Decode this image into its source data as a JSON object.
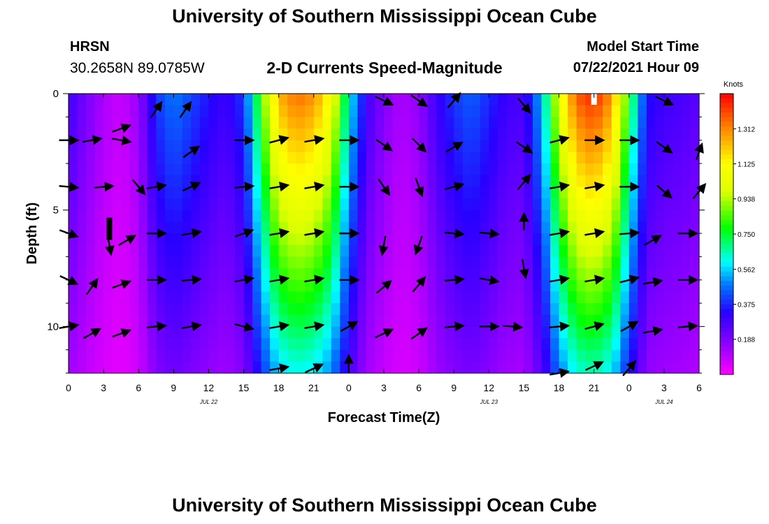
{
  "page": {
    "title_top": "University of Southern Mississippi Ocean Cube",
    "title_bottom": "University of Southern Mississippi Ocean Cube",
    "station_name": "HRSN",
    "station_coords": "30.2658N  89.0785W",
    "product_title": "2-D Currents Speed-Magnitude",
    "model_start_label": "Model Start Time",
    "model_start_value": "07/22/2021 Hour 09"
  },
  "chart_data": {
    "type": "heatmap",
    "title": "2-D Currents Speed-Magnitude",
    "xlabel": "Forecast Time(Z)",
    "ylabel": "Depth (ft)",
    "x_hours_range": [
      0,
      54
    ],
    "y_range": [
      0,
      12
    ],
    "x_tick_labels": [
      "0",
      "3",
      "6",
      "9",
      "12",
      "15",
      "18",
      "21",
      "0",
      "3",
      "6",
      "9",
      "12",
      "15",
      "18",
      "21",
      "0",
      "3",
      "6"
    ],
    "y_tick_values": [
      0,
      5,
      10
    ],
    "date_labels": [
      {
        "hour": 12,
        "label": "JUL 22"
      },
      {
        "hour": 36,
        "label": "JUL 23"
      },
      {
        "hour": 51,
        "label": "JUL 24"
      }
    ],
    "colorbar": {
      "unit": "Knots",
      "range": [
        0,
        1.5
      ],
      "tick_values": [
        1.312,
        1.125,
        0.938,
        0.75,
        0.562,
        0.375,
        0.188
      ],
      "tick_labels": [
        "1.312",
        "1.125",
        "0.938",
        "0.750",
        "0.562",
        "0.375",
        "0.188"
      ]
    },
    "speed_profile": {
      "hours": [
        0,
        1.5,
        3,
        4.5,
        6,
        7.5,
        9,
        10.5,
        12,
        13.5,
        15,
        16.5,
        18,
        19.5,
        21,
        22.5,
        24,
        25.5,
        27,
        28.5,
        30,
        31.5,
        33,
        34.5,
        36,
        37.5,
        39,
        40.5,
        42,
        43.5,
        45,
        46.5,
        48,
        49.5,
        51,
        52.5,
        54
      ],
      "surface_knots": [
        0.3,
        0.2,
        0.12,
        0.08,
        0.15,
        0.4,
        0.48,
        0.42,
        0.35,
        0.3,
        0.4,
        0.85,
        1.25,
        1.35,
        1.3,
        1.1,
        0.62,
        0.3,
        0.18,
        0.12,
        0.16,
        0.3,
        0.4,
        0.45,
        0.38,
        0.3,
        0.28,
        0.55,
        1.05,
        1.38,
        1.45,
        1.3,
        0.8,
        0.35,
        0.3,
        0.28,
        0.25
      ],
      "depth_factor_at_bottom": 0.45
    },
    "vector_rows_depth_ft": [
      0,
      2,
      4,
      6,
      8,
      10,
      12
    ],
    "vectors_note": "direction in degrees (0 = up/north, clockwise), length relative",
    "vectors": [
      {
        "hour": 0,
        "depth": 2,
        "dir": 90,
        "len": 0.9
      },
      {
        "hour": 2,
        "depth": 2,
        "dir": 80,
        "len": 0.9
      },
      {
        "hour": 4.5,
        "depth": 2,
        "dir": 100,
        "len": 0.9
      },
      {
        "hour": 7.5,
        "depth": 0.7,
        "dir": 35,
        "len": 0.9
      },
      {
        "hour": 10,
        "depth": 0.7,
        "dir": 35,
        "len": 0.9
      },
      {
        "hour": 10.5,
        "depth": 2.5,
        "dir": 55,
        "len": 0.9
      },
      {
        "hour": 4.5,
        "depth": 1.5,
        "dir": 70,
        "len": 0.9
      },
      {
        "hour": 0,
        "depth": 4,
        "dir": 95,
        "len": 0.9
      },
      {
        "hour": 3,
        "depth": 4,
        "dir": 85,
        "len": 0.9
      },
      {
        "hour": 6,
        "depth": 4,
        "dir": 140,
        "len": 0.9
      },
      {
        "hour": 7.5,
        "depth": 4,
        "dir": 80,
        "len": 0.9
      },
      {
        "hour": 10.5,
        "depth": 4,
        "dir": 65,
        "len": 0.9
      },
      {
        "hour": 0,
        "depth": 6,
        "dir": 110,
        "len": 0.9
      },
      {
        "hour": 3.5,
        "depth": 6.5,
        "dir": 170,
        "len": 0.9
      },
      {
        "hour": 5,
        "depth": 6.3,
        "dir": 60,
        "len": 0.9
      },
      {
        "hour": 7.5,
        "depth": 6,
        "dir": 90,
        "len": 0.9
      },
      {
        "hour": 10.5,
        "depth": 6,
        "dir": 80,
        "len": 0.9
      },
      {
        "hour": 0,
        "depth": 8,
        "dir": 115,
        "len": 0.9
      },
      {
        "hour": 2,
        "depth": 8.3,
        "dir": 35,
        "len": 0.9
      },
      {
        "hour": 4.5,
        "depth": 8.2,
        "dir": 70,
        "len": 0.9
      },
      {
        "hour": 7.5,
        "depth": 8,
        "dir": 90,
        "len": 0.9
      },
      {
        "hour": 10.5,
        "depth": 8,
        "dir": 85,
        "len": 0.9
      },
      {
        "hour": 0,
        "depth": 10,
        "dir": 80,
        "len": 0.9
      },
      {
        "hour": 2,
        "depth": 10.3,
        "dir": 60,
        "len": 0.9
      },
      {
        "hour": 4.5,
        "depth": 10.3,
        "dir": 70,
        "len": 0.9
      },
      {
        "hour": 7.5,
        "depth": 10,
        "dir": 85,
        "len": 0.9
      },
      {
        "hour": 10.5,
        "depth": 10,
        "dir": 80,
        "len": 0.9
      },
      {
        "hour": 15,
        "depth": 2,
        "dir": 90,
        "len": 0.9
      },
      {
        "hour": 18,
        "depth": 2,
        "dir": 75,
        "len": 0.9
      },
      {
        "hour": 21,
        "depth": 2,
        "dir": 80,
        "len": 0.9
      },
      {
        "hour": 15,
        "depth": 4,
        "dir": 85,
        "len": 0.9
      },
      {
        "hour": 18,
        "depth": 4,
        "dir": 80,
        "len": 0.9
      },
      {
        "hour": 21,
        "depth": 4,
        "dir": 80,
        "len": 0.9
      },
      {
        "hour": 15,
        "depth": 6,
        "dir": 70,
        "len": 0.9
      },
      {
        "hour": 18,
        "depth": 6,
        "dir": 80,
        "len": 0.9
      },
      {
        "hour": 21,
        "depth": 6,
        "dir": 80,
        "len": 0.9
      },
      {
        "hour": 15,
        "depth": 8,
        "dir": 80,
        "len": 0.9
      },
      {
        "hour": 18,
        "depth": 8,
        "dir": 80,
        "len": 0.9
      },
      {
        "hour": 21,
        "depth": 8,
        "dir": 80,
        "len": 0.9
      },
      {
        "hour": 15,
        "depth": 10,
        "dir": 105,
        "len": 0.9
      },
      {
        "hour": 18,
        "depth": 10,
        "dir": 80,
        "len": 0.9
      },
      {
        "hour": 21,
        "depth": 10,
        "dir": 80,
        "len": 0.9
      },
      {
        "hour": 18,
        "depth": 11.8,
        "dir": 80,
        "len": 0.9
      },
      {
        "hour": 21,
        "depth": 11.8,
        "dir": 65,
        "len": 0.9
      },
      {
        "hour": 24,
        "depth": 2,
        "dir": 90,
        "len": 0.9
      },
      {
        "hour": 24,
        "depth": 4,
        "dir": 90,
        "len": 0.9
      },
      {
        "hour": 24,
        "depth": 6,
        "dir": 90,
        "len": 0.9
      },
      {
        "hour": 24,
        "depth": 8,
        "dir": 90,
        "len": 0.9
      },
      {
        "hour": 24,
        "depth": 10,
        "dir": 60,
        "len": 0.9
      },
      {
        "hour": 24,
        "depth": 11.6,
        "dir": 0,
        "len": 0.8
      },
      {
        "hour": 27,
        "depth": 0.3,
        "dir": 115,
        "len": 0.9
      },
      {
        "hour": 30,
        "depth": 0.3,
        "dir": 125,
        "len": 0.9
      },
      {
        "hour": 33,
        "depth": 0.3,
        "dir": 40,
        "len": 0.9
      },
      {
        "hour": 27,
        "depth": 2.2,
        "dir": 125,
        "len": 0.9
      },
      {
        "hour": 30,
        "depth": 2.2,
        "dir": 135,
        "len": 0.9
      },
      {
        "hour": 33,
        "depth": 2.3,
        "dir": 60,
        "len": 0.9
      },
      {
        "hour": 27,
        "depth": 4,
        "dir": 145,
        "len": 0.9
      },
      {
        "hour": 30,
        "depth": 4,
        "dir": 160,
        "len": 0.9
      },
      {
        "hour": 33,
        "depth": 4,
        "dir": 75,
        "len": 0.9
      },
      {
        "hour": 27,
        "depth": 6.5,
        "dir": 190,
        "len": 0.9
      },
      {
        "hour": 30,
        "depth": 6.5,
        "dir": 200,
        "len": 0.9
      },
      {
        "hour": 33,
        "depth": 6,
        "dir": 95,
        "len": 0.9
      },
      {
        "hour": 27,
        "depth": 8.3,
        "dir": 50,
        "len": 0.9
      },
      {
        "hour": 30,
        "depth": 8.2,
        "dir": 40,
        "len": 0.9
      },
      {
        "hour": 33,
        "depth": 8,
        "dir": 85,
        "len": 0.9
      },
      {
        "hour": 27,
        "depth": 10.3,
        "dir": 65,
        "len": 0.9
      },
      {
        "hour": 30,
        "depth": 10.3,
        "dir": 55,
        "len": 0.9
      },
      {
        "hour": 33,
        "depth": 10,
        "dir": 85,
        "len": 0.9
      },
      {
        "hour": 36,
        "depth": 2,
        "dir": 0,
        "len": 0
      },
      {
        "hour": 36,
        "depth": 4,
        "dir": 0,
        "len": 0
      },
      {
        "hour": 36,
        "depth": 6,
        "dir": 95,
        "len": 0.9
      },
      {
        "hour": 36,
        "depth": 8,
        "dir": 100,
        "len": 0.9
      },
      {
        "hour": 36,
        "depth": 10,
        "dir": 90,
        "len": 0.9
      },
      {
        "hour": 39,
        "depth": 0.5,
        "dir": 140,
        "len": 0.9
      },
      {
        "hour": 39,
        "depth": 2.3,
        "dir": 125,
        "len": 0.9
      },
      {
        "hour": 39,
        "depth": 3.8,
        "dir": 40,
        "len": 0.9
      },
      {
        "hour": 39,
        "depth": 5.5,
        "dir": 0,
        "len": 0.8
      },
      {
        "hour": 39,
        "depth": 7.5,
        "dir": 170,
        "len": 0.9
      },
      {
        "hour": 38,
        "depth": 10,
        "dir": 95,
        "len": 0.9
      },
      {
        "hour": 42,
        "depth": 2,
        "dir": 75,
        "len": 0.9
      },
      {
        "hour": 45,
        "depth": 2,
        "dir": 90,
        "len": 0.9
      },
      {
        "hour": 48,
        "depth": 2,
        "dir": 90,
        "len": 0.9
      },
      {
        "hour": 42,
        "depth": 4,
        "dir": 80,
        "len": 0.9
      },
      {
        "hour": 45,
        "depth": 4,
        "dir": 80,
        "len": 0.9
      },
      {
        "hour": 48,
        "depth": 4,
        "dir": 90,
        "len": 0.9
      },
      {
        "hour": 42,
        "depth": 6,
        "dir": 80,
        "len": 0.9
      },
      {
        "hour": 45,
        "depth": 6,
        "dir": 80,
        "len": 0.9
      },
      {
        "hour": 48,
        "depth": 6,
        "dir": 85,
        "len": 0.9
      },
      {
        "hour": 42,
        "depth": 8,
        "dir": 80,
        "len": 0.9
      },
      {
        "hour": 45,
        "depth": 8,
        "dir": 80,
        "len": 0.9
      },
      {
        "hour": 48,
        "depth": 8,
        "dir": 75,
        "len": 0.9
      },
      {
        "hour": 42,
        "depth": 10,
        "dir": 85,
        "len": 0.9
      },
      {
        "hour": 45,
        "depth": 10,
        "dir": 75,
        "len": 0.9
      },
      {
        "hour": 48,
        "depth": 10,
        "dir": 60,
        "len": 0.9
      },
      {
        "hour": 42,
        "depth": 12,
        "dir": 80,
        "len": 0.9
      },
      {
        "hour": 45,
        "depth": 11.7,
        "dir": 65,
        "len": 0.9
      },
      {
        "hour": 48,
        "depth": 11.8,
        "dir": 40,
        "len": 0.9
      },
      {
        "hour": 51,
        "depth": 0.3,
        "dir": 115,
        "len": 0.9
      },
      {
        "hour": 51,
        "depth": 2.3,
        "dir": 125,
        "len": 0.9
      },
      {
        "hour": 54,
        "depth": 2.5,
        "dir": 20,
        "len": 0.8
      },
      {
        "hour": 51,
        "depth": 4.2,
        "dir": 130,
        "len": 0.9
      },
      {
        "hour": 54,
        "depth": 4.2,
        "dir": 40,
        "len": 0.9
      },
      {
        "hour": 50,
        "depth": 6.3,
        "dir": 60,
        "len": 0.9
      },
      {
        "hour": 53,
        "depth": 6,
        "dir": 90,
        "len": 0.9
      },
      {
        "hour": 50,
        "depth": 8.1,
        "dir": 80,
        "len": 0.9
      },
      {
        "hour": 53,
        "depth": 8,
        "dir": 90,
        "len": 0.9
      },
      {
        "hour": 50,
        "depth": 10.2,
        "dir": 80,
        "len": 0.9
      },
      {
        "hour": 53,
        "depth": 10,
        "dir": 85,
        "len": 0.9
      }
    ],
    "annotations": [
      {
        "hour": 3.5,
        "depth": 5.8,
        "kind": "black-bar"
      },
      {
        "hour": 45,
        "depth": 0.3,
        "kind": "white-bar"
      }
    ]
  }
}
